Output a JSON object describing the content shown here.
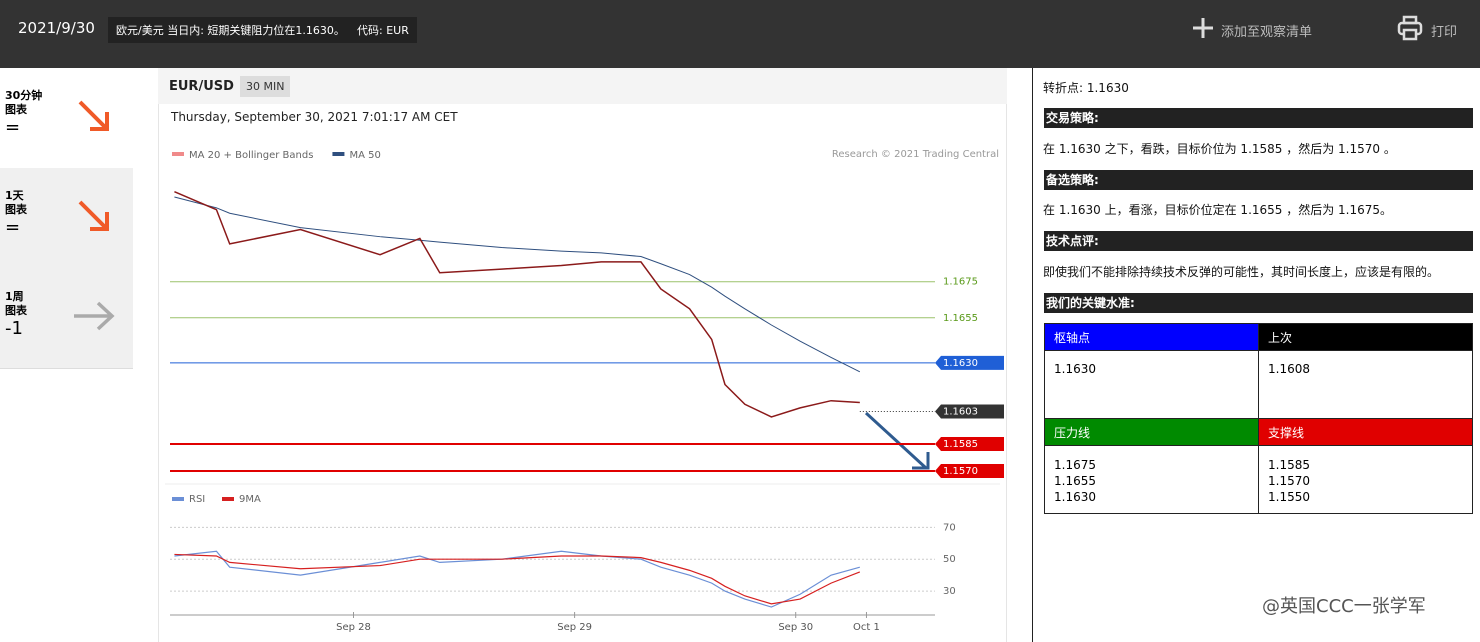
{
  "header": {
    "date": "2021/9/30",
    "headline": "欧元/美元 当日内: 短期关键阻力位在1.1630。",
    "code": "代码: EUR",
    "watchlist": "添加至观察清单",
    "print": "打印"
  },
  "sidebar": [
    {
      "period": "30分钟",
      "label": "图表",
      "value": "="
    },
    {
      "period": "1天",
      "label": "图表",
      "value": "="
    },
    {
      "period": "1周",
      "label": "图表",
      "value": "-1"
    }
  ],
  "chart_data": {
    "type": "line",
    "symbol": "EUR/USD",
    "interval": "30 MIN",
    "timestamp": "Thursday, September 30, 2021 7:01:17 AM CET",
    "credit": "Research © 2021 Trading Central",
    "legend": [
      {
        "name": "MA 20 + Bollinger Bands",
        "color": "#f08a8a"
      },
      {
        "name": "MA 50",
        "color": "#2f4f7f"
      }
    ],
    "x": [
      27.19,
      27.38,
      27.44,
      27.76,
      28.12,
      28.3,
      28.39,
      28.67,
      28.94,
      29.12,
      29.3,
      29.39,
      29.52,
      29.62,
      29.68,
      29.77,
      29.89,
      30.02,
      30.16,
      30.29
    ],
    "values": [
      1.1725,
      1.1715,
      1.1696,
      1.1704,
      1.169,
      1.1699,
      1.168,
      1.1682,
      1.1684,
      1.1686,
      1.1686,
      1.1671,
      1.166,
      1.1643,
      1.1618,
      1.1607,
      1.16,
      1.1605,
      1.1609,
      1.1608
    ],
    "ma50": [
      1.1722,
      1.1716,
      1.1713,
      1.1705,
      1.17,
      1.1698,
      1.1697,
      1.1694,
      1.1692,
      1.1691,
      1.1689,
      1.1685,
      1.1679,
      1.1672,
      1.1667,
      1.166,
      1.1651,
      1.1642,
      1.1633,
      1.1625
    ],
    "xlim": [
      27.17,
      30.63
    ],
    "ylim": [
      1.1565,
      1.1737
    ],
    "xticks": [
      {
        "value": 28,
        "label": "Sep 28"
      },
      {
        "value": 29,
        "label": "Sep 29"
      },
      {
        "value": 30,
        "label": "Sep 30"
      },
      {
        "value": 30.32,
        "label": "Oct 1"
      }
    ],
    "levels": [
      {
        "value": 1.1675,
        "label": "1.1675",
        "color": "#9bc26b"
      },
      {
        "value": 1.1655,
        "label": "1.1655",
        "color": "#9bc26b"
      },
      {
        "value": 1.163,
        "label": "1.1630",
        "color": "#1f5fd6"
      },
      {
        "value": 1.1603,
        "label": "1.1603",
        "color": "#333333"
      },
      {
        "value": 1.1585,
        "label": "1.1585",
        "color": "#e00000"
      },
      {
        "value": 1.157,
        "label": "1.1570",
        "color": "#e00000"
      }
    ],
    "rsi": {
      "series": [
        {
          "name": "RSI",
          "color": "#6b8fd6",
          "values": [
            52,
            55,
            45,
            40,
            48,
            52,
            48,
            50,
            55,
            52,
            50,
            45,
            40,
            35,
            30,
            25,
            20,
            28,
            40,
            45
          ]
        },
        {
          "name": "9MA",
          "color": "#d62020",
          "values": [
            53,
            52,
            48,
            44,
            46,
            50,
            50,
            50,
            52,
            52,
            51,
            48,
            43,
            38,
            33,
            27,
            22,
            25,
            35,
            42
          ]
        }
      ],
      "ylim": [
        15,
        84
      ],
      "yticks": [
        70,
        50,
        30
      ]
    }
  },
  "panel": {
    "pivot": "转折点: 1.1630",
    "strategy_title": "交易策略:",
    "strategy": "在 1.1630 之下，看跌，目标价位为 1.1585 ，然后为 1.1570 。",
    "alt_title": "备选策略:",
    "alt": "在 1.1630 上，看涨，目标价位定在 1.1655 ，然后为 1.1675。",
    "comment_title": "技术点评:",
    "comment": "即使我们不能排除持续技术反弹的可能性，其时间长度上，应该是有限的。",
    "levels_title": "我们的关键水准:",
    "table": {
      "header1": [
        "枢轴点",
        "上次"
      ],
      "row1": [
        "1.1630",
        "1.1608"
      ],
      "header2": [
        "压力线",
        "支撑线"
      ],
      "row2": [
        [
          "1.1675",
          "1.1655",
          "1.1630"
        ],
        [
          "1.1585",
          "1.1570",
          "1.1550"
        ]
      ]
    }
  },
  "watermark": "@英国CCC一张学军"
}
